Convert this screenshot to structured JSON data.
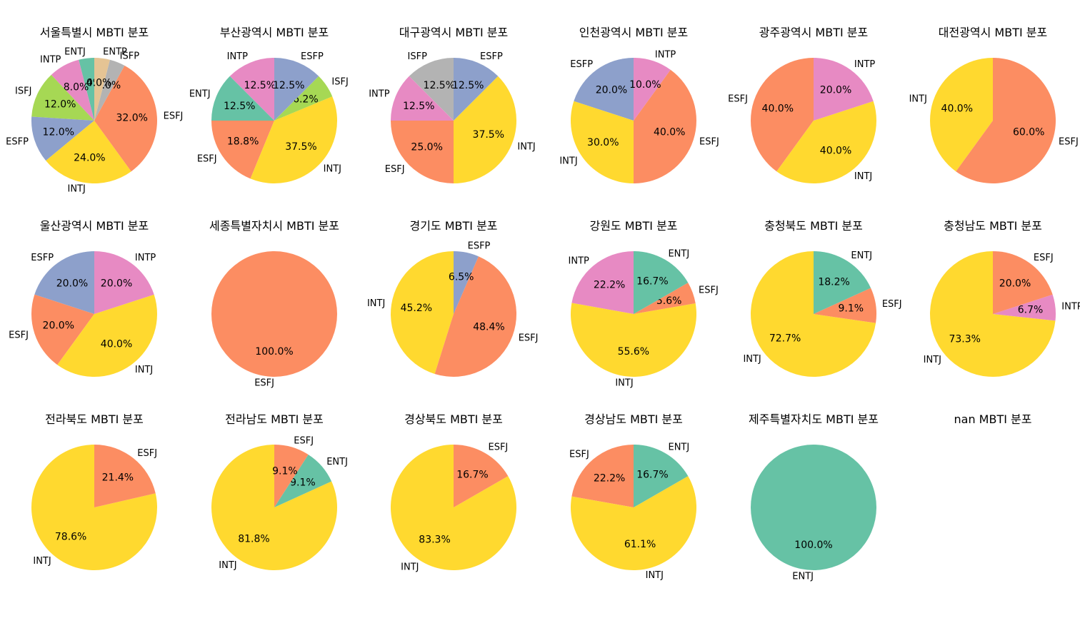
{
  "colors": {
    "ENTJ": "#66c2a5",
    "ESFJ": "#fc8d62",
    "ESFP": "#8da0cb",
    "INTP": "#e78ac3",
    "ISFJ": "#a6d854",
    "INTJ": "#ffd92f",
    "ENTP": "#e5c494",
    "ISFP": "#b3b3b3"
  },
  "chart_data": [
    {
      "type": "pie",
      "title": "서울특별시 MBTI 분포",
      "slices": [
        {
          "label": "ENTJ",
          "pct": "4.0%",
          "value": 4.0
        },
        {
          "label": "INTP",
          "pct": "8.0%",
          "value": 8.0
        },
        {
          "label": "ISFJ",
          "pct": "12.0%",
          "value": 12.0
        },
        {
          "label": "ESFP",
          "pct": "12.0%",
          "value": 12.0
        },
        {
          "label": "INTJ",
          "pct": "24.0%",
          "value": 24.0
        },
        {
          "label": "ESFJ",
          "pct": "32.0%",
          "value": 32.0
        },
        {
          "label": "ISFP",
          "pct": "4.0%",
          "value": 4.0
        },
        {
          "label": "ENTP",
          "pct": "4.0%",
          "value": 4.0
        }
      ]
    },
    {
      "type": "pie",
      "title": "부산광역시 MBTI 분포",
      "slices": [
        {
          "label": "INTP",
          "pct": "12.5%",
          "value": 12.5
        },
        {
          "label": "ENTJ",
          "pct": "12.5%",
          "value": 12.5
        },
        {
          "label": "ESFJ",
          "pct": "18.8%",
          "value": 18.8
        },
        {
          "label": "INTJ",
          "pct": "37.5%",
          "value": 37.5
        },
        {
          "label": "ISFJ",
          "pct": "6.2%",
          "value": 6.2
        },
        {
          "label": "ESFP",
          "pct": "12.5%",
          "value": 12.5
        }
      ]
    },
    {
      "type": "pie",
      "title": "대구광역시 MBTI 분포",
      "slices": [
        {
          "label": "ISFP",
          "pct": "12.5%",
          "value": 12.5
        },
        {
          "label": "INTP",
          "pct": "12.5%",
          "value": 12.5
        },
        {
          "label": "ESFJ",
          "pct": "25.0%",
          "value": 25.0
        },
        {
          "label": "INTJ",
          "pct": "37.5%",
          "value": 37.5
        },
        {
          "label": "ESFP",
          "pct": "12.5%",
          "value": 12.5
        }
      ]
    },
    {
      "type": "pie",
      "title": "인천광역시 MBTI 분포",
      "slices": [
        {
          "label": "ESFP",
          "pct": "20.0%",
          "value": 20.0
        },
        {
          "label": "INTJ",
          "pct": "30.0%",
          "value": 30.0
        },
        {
          "label": "ESFJ",
          "pct": "40.0%",
          "value": 40.0
        },
        {
          "label": "INTP",
          "pct": "10.0%",
          "value": 10.0
        }
      ]
    },
    {
      "type": "pie",
      "title": "광주광역시 MBTI 분포",
      "slices": [
        {
          "label": "ESFJ",
          "pct": "40.0%",
          "value": 40.0
        },
        {
          "label": "INTJ",
          "pct": "40.0%",
          "value": 40.0
        },
        {
          "label": "INTP",
          "pct": "20.0%",
          "value": 20.0
        }
      ]
    },
    {
      "type": "pie",
      "title": "대전광역시 MBTI 분포",
      "slices": [
        {
          "label": "INTJ",
          "pct": "40.0%",
          "value": 40.0
        },
        {
          "label": "ESFJ",
          "pct": "60.0%",
          "value": 60.0
        }
      ]
    },
    {
      "type": "pie",
      "title": "울산광역시 MBTI 분포",
      "slices": [
        {
          "label": "ESFP",
          "pct": "20.0%",
          "value": 20.0
        },
        {
          "label": "ESFJ",
          "pct": "20.0%",
          "value": 20.0
        },
        {
          "label": "INTJ",
          "pct": "40.0%",
          "value": 40.0
        },
        {
          "label": "INTP",
          "pct": "20.0%",
          "value": 20.0
        }
      ]
    },
    {
      "type": "pie",
      "title": "세종특별자치시 MBTI 분포",
      "slices": [
        {
          "label": "ESFJ",
          "pct": "100.0%",
          "value": 100.0
        }
      ]
    },
    {
      "type": "pie",
      "title": "경기도 MBTI 분포",
      "slices": [
        {
          "label": "INTJ",
          "pct": "45.2%",
          "value": 45.2
        },
        {
          "label": "ESFJ",
          "pct": "48.4%",
          "value": 48.4
        },
        {
          "label": "ESFP",
          "pct": "6.5%",
          "value": 6.5
        }
      ]
    },
    {
      "type": "pie",
      "title": "강원도  MBTI 분포",
      "slices": [
        {
          "label": "INTP",
          "pct": "22.2%",
          "value": 22.2
        },
        {
          "label": "INTJ",
          "pct": "55.6%",
          "value": 55.6
        },
        {
          "label": "ESFJ",
          "pct": "5.6%",
          "value": 5.6
        },
        {
          "label": "ENTJ",
          "pct": "16.7%",
          "value": 16.7
        }
      ]
    },
    {
      "type": "pie",
      "title": "충청북도 MBTI 분포",
      "slices": [
        {
          "label": "INTJ",
          "pct": "72.7%",
          "value": 72.7
        },
        {
          "label": "ESFJ",
          "pct": "9.1%",
          "value": 9.1
        },
        {
          "label": "ENTJ",
          "pct": "18.2%",
          "value": 18.2
        }
      ]
    },
    {
      "type": "pie",
      "title": "충청남도 MBTI 분포",
      "slices": [
        {
          "label": "INTJ",
          "pct": "73.3%",
          "value": 73.3
        },
        {
          "label": "INTP",
          "pct": "6.7%",
          "value": 6.7
        },
        {
          "label": "ESFJ",
          "pct": "20.0%",
          "value": 20.0
        }
      ]
    },
    {
      "type": "pie",
      "title": "전라북도 MBTI 분포",
      "slices": [
        {
          "label": "INTJ",
          "pct": "78.6%",
          "value": 78.6
        },
        {
          "label": "ESFJ",
          "pct": "21.4%",
          "value": 21.4
        }
      ]
    },
    {
      "type": "pie",
      "title": "전라남도 MBTI 분포",
      "slices": [
        {
          "label": "INTJ",
          "pct": "81.8%",
          "value": 81.8
        },
        {
          "label": "ENTJ",
          "pct": "9.1%",
          "value": 9.1
        },
        {
          "label": "ESFJ",
          "pct": "9.1%",
          "value": 9.1
        }
      ]
    },
    {
      "type": "pie",
      "title": "경상북도 MBTI 분포",
      "slices": [
        {
          "label": "INTJ",
          "pct": "83.3%",
          "value": 83.3
        },
        {
          "label": "ESFJ",
          "pct": "16.7%",
          "value": 16.7
        }
      ]
    },
    {
      "type": "pie",
      "title": "경상남도 MBTI 분포",
      "slices": [
        {
          "label": "ESFJ",
          "pct": "22.2%",
          "value": 22.2
        },
        {
          "label": "INTJ",
          "pct": "61.1%",
          "value": 61.1
        },
        {
          "label": "ENTJ",
          "pct": "16.7%",
          "value": 16.7
        }
      ]
    },
    {
      "type": "pie",
      "title": "제주특별자치도 MBTI 분포",
      "slices": [
        {
          "label": "ENTJ",
          "pct": "100.0%",
          "value": 100.0
        }
      ]
    },
    {
      "type": "pie",
      "title": "nan MBTI 분포",
      "slices": []
    }
  ]
}
